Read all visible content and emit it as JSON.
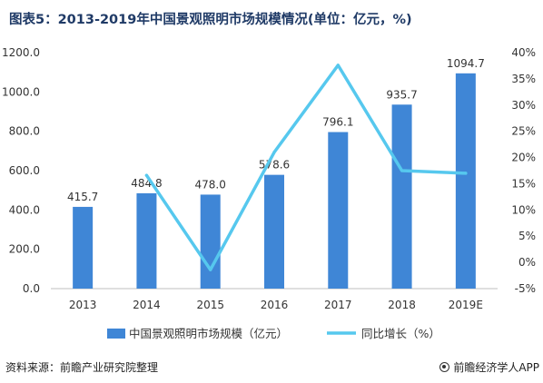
{
  "title": "图表5：2013-2019年中国景观照明市场规模情况(单位：亿元，%)",
  "source": "资料来源：前瞻产业研究院整理",
  "brand": "前瞻经济学人APP",
  "colors": {
    "bar": "#3f86d6",
    "line": "#56c8ee",
    "title": "#1f3a66"
  },
  "chart_data": {
    "type": "bar",
    "categories": [
      "2013",
      "2014",
      "2015",
      "2016",
      "2017",
      "2018",
      "2019E"
    ],
    "series": [
      {
        "name": "中国景观照明市场规模（亿元）",
        "type": "bar",
        "axis": "left",
        "values": [
          415.7,
          484.8,
          478.0,
          578.6,
          796.1,
          935.7,
          1094.7
        ],
        "labels": [
          "415.7",
          "484.8",
          "478.0",
          "578.6",
          "796.1",
          "935.7",
          "1094.7"
        ]
      },
      {
        "name": "同比增长（%）",
        "type": "line",
        "axis": "right",
        "values": [
          null,
          16.6,
          -1.4,
          21.0,
          37.6,
          17.5,
          17.0
        ]
      }
    ],
    "y_left": {
      "min": 0,
      "max": 1200,
      "ticks": [
        "0.0",
        "200.0",
        "400.0",
        "600.0",
        "800.0",
        "1000.0",
        "1200.0"
      ]
    },
    "y_right": {
      "min": -5,
      "max": 40,
      "ticks": [
        "-5%",
        "0%",
        "5%",
        "10%",
        "15%",
        "20%",
        "25%",
        "30%",
        "35%",
        "40%"
      ]
    },
    "grid": false,
    "legend": "bottom"
  }
}
